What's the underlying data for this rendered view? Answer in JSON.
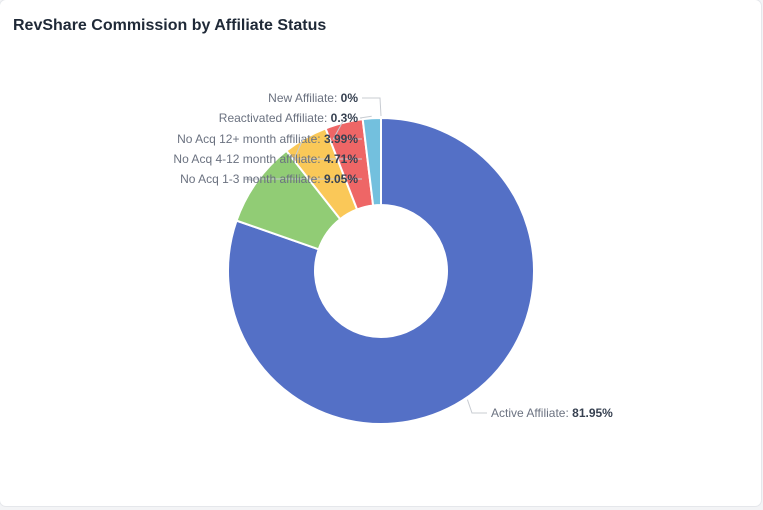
{
  "header": {
    "title": "RevShare Commission by Affiliate Status"
  },
  "chart_data": {
    "type": "pie",
    "title": "RevShare Commission by Affiliate Status",
    "donut": true,
    "categories": [
      "Active Affiliate",
      "No Acq 1-3 month affiliate",
      "No Acq 4-12 month affiliate",
      "No Acq 12+ month affiliate",
      "Reactivated Affiliate",
      "New Affiliate"
    ],
    "values": [
      81.95,
      9.05,
      4.71,
      3.99,
      0.3,
      0
    ],
    "value_labels": [
      "81.95%",
      "9.05%",
      "4.71%",
      "3.99%",
      "0.3%",
      "0%"
    ],
    "colors": [
      "#5470c6",
      "#91cc75",
      "#fac858",
      "#ee6666",
      "#73c0de",
      "#3ba272"
    ]
  }
}
